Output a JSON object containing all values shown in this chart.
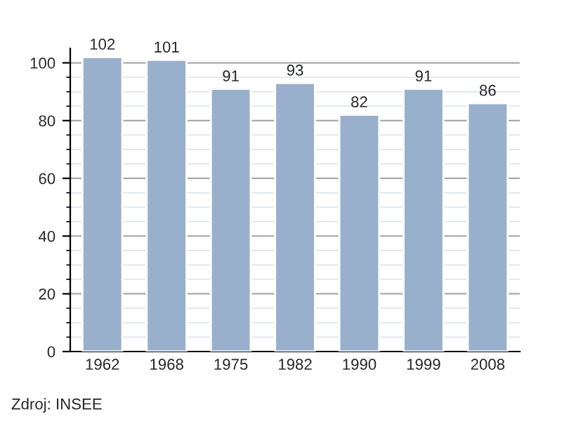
{
  "chart_data": {
    "type": "bar",
    "categories": [
      "1962",
      "1968",
      "1975",
      "1982",
      "1990",
      "1999",
      "2008"
    ],
    "values": [
      102,
      101,
      91,
      93,
      82,
      91,
      86
    ],
    "color": "#98b0cc",
    "ylim": [
      0,
      105
    ],
    "yticks": [
      0,
      20,
      40,
      60,
      80,
      100
    ],
    "grid": "y",
    "data_labels": true,
    "annotations": [
      "Zdroj: INSEE"
    ]
  }
}
